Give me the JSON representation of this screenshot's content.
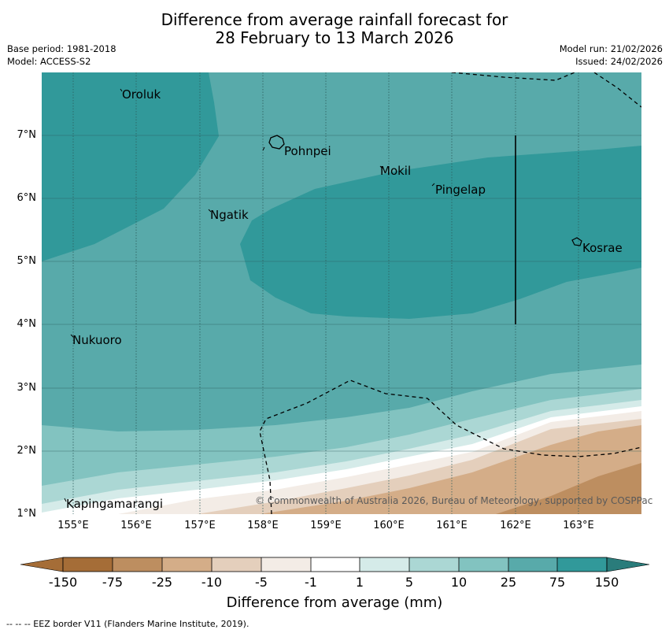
{
  "title": {
    "line1": "Difference from average rainfall forecast for",
    "line2": "28 February to 13 March 2026"
  },
  "meta": {
    "base_period": "Base period: 1981-2018",
    "model": "Model: ACCESS-S2",
    "model_run": "Model run: 21/02/2026",
    "issued": "Issued: 24/02/2026"
  },
  "axes": {
    "x_ticks": [
      "155°E",
      "156°E",
      "157°E",
      "158°E",
      "159°E",
      "160°E",
      "161°E",
      "162°E",
      "163°E"
    ],
    "y_ticks": [
      "7°N",
      "6°N",
      "5°N",
      "4°N",
      "3°N",
      "2°N",
      "1°N"
    ]
  },
  "places": [
    "Oroluk",
    "Pohnpei",
    "Mokil",
    "Pingelap",
    "Ngatik",
    "Kosrae",
    "Nukuoro",
    "Kapingamarangi"
  ],
  "colorbar": {
    "ticks": [
      "-150",
      "-75",
      "-25",
      "-10",
      "-5",
      "-1",
      "1",
      "5",
      "10",
      "25",
      "75",
      "150"
    ],
    "title": "Difference from average (mm)",
    "colors": [
      "#a56d37",
      "#bd8e60",
      "#d4ad88",
      "#e4cfbc",
      "#f3ece6",
      "#ffffff",
      "#d5ebe9",
      "#abd7d4",
      "#82c3c0",
      "#58aaaa",
      "#31999a",
      "#2a7c7b"
    ]
  },
  "copyright": "© Commonwealth of Australia 2026, Bureau of Meteorology, supported by COSPPac",
  "footnote": "--  --  -- EEZ border V11 (Flanders Marine Institute, 2019)."
}
